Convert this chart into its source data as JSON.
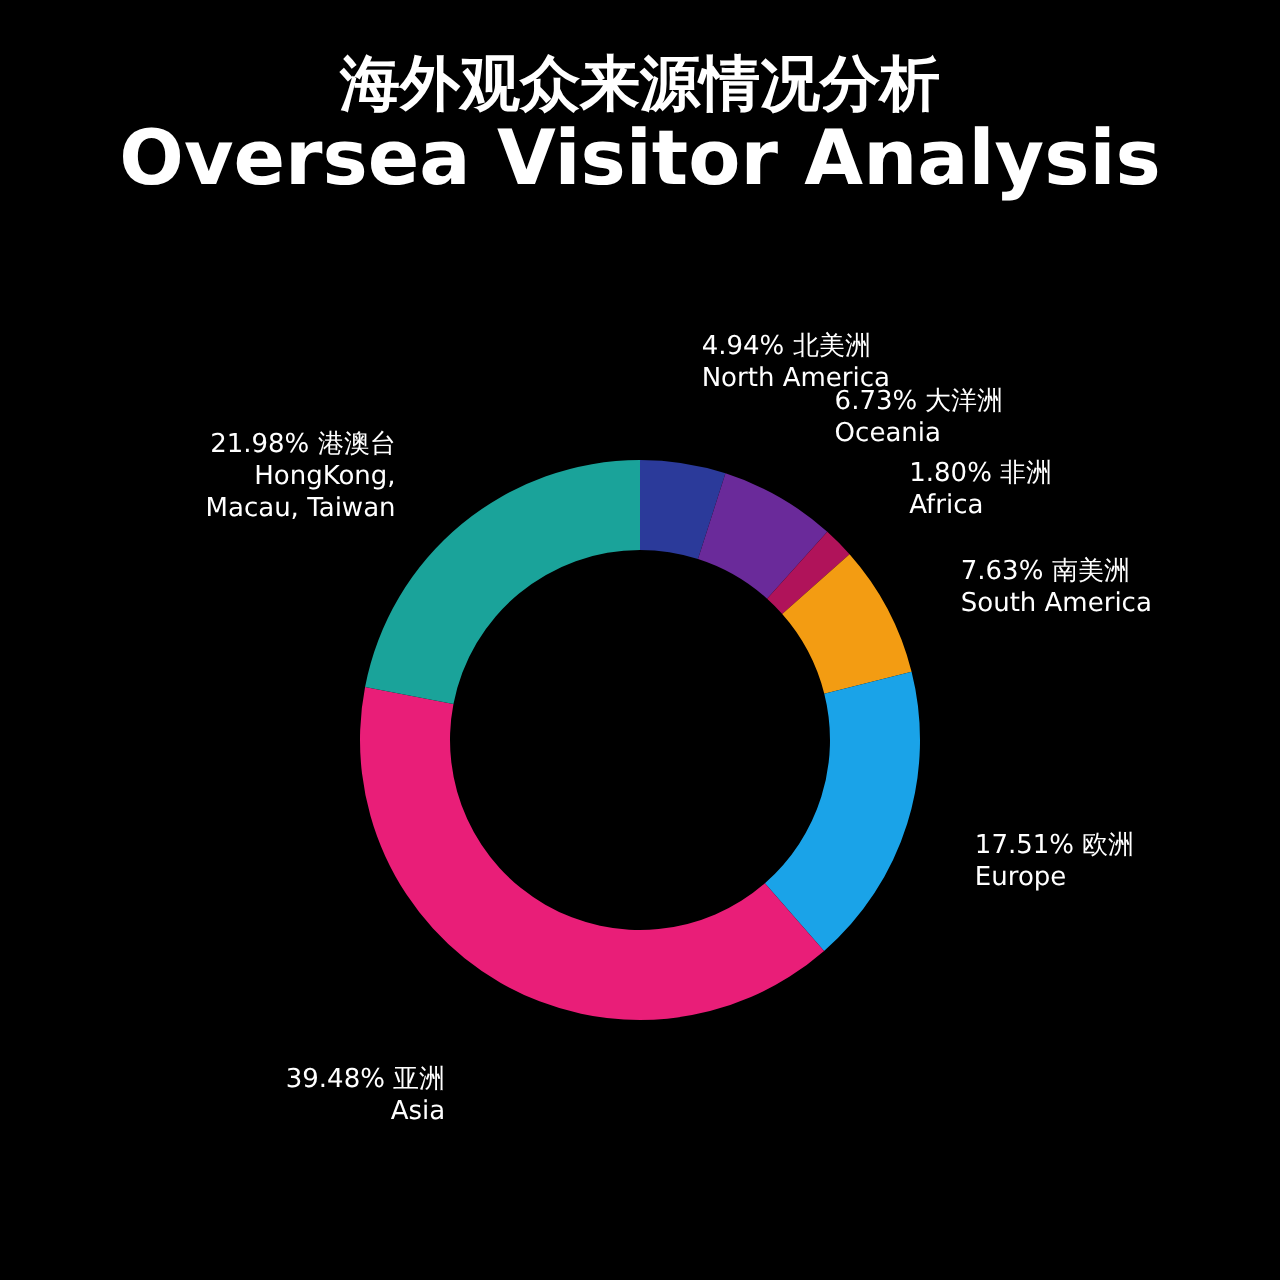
{
  "chart_data": {
    "type": "donut",
    "title": "海外观众来源情况分析",
    "subtitle": "Oversea Visitor Analysis",
    "categories": [
      "北美洲\nNorth America",
      "大洋洲\nOceania",
      "非洲\nAfrica",
      "南美洲\nSouth America",
      "欧洲\nEurope",
      "亚洲\nAsia",
      "港澳台\nHongKong,\nMacau, Taiwan"
    ],
    "values": [
      4.94,
      6.73,
      1.8,
      7.63,
      17.51,
      39.48,
      21.98
    ],
    "value_labels": [
      "4.94%",
      "6.73%",
      "1.80%",
      "7.63%",
      "17.51%",
      "39.48%",
      "21.98%"
    ],
    "colors": [
      "#2b3a9a",
      "#6a2a9a",
      "#b0135a",
      "#f39c12",
      "#1aa3e8",
      "#e91e78",
      "#1aa39a"
    ]
  }
}
